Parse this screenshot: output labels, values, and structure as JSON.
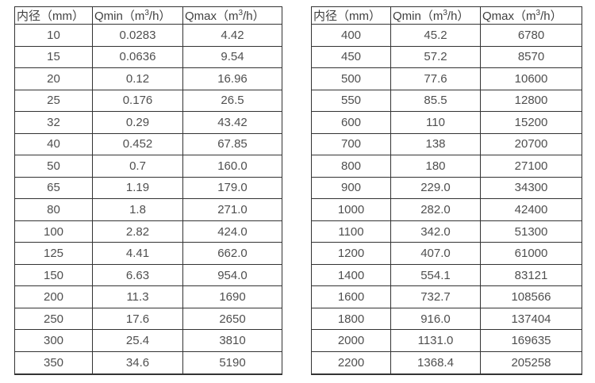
{
  "colors": {
    "background": "#ffffff",
    "border": "#333333",
    "header_text": "#404040",
    "cell_text": "#4f4f4f"
  },
  "tables": [
    {
      "name": "flow-table-small-diameters",
      "headers": [
        {
          "text": "内径（mm）"
        },
        {
          "pre": "Qmin（m",
          "sup": "3",
          "post": "/h）"
        },
        {
          "pre": "Qmax（m",
          "sup": "3",
          "post": "/h）"
        }
      ],
      "rows": [
        [
          "10",
          "0.0283",
          "4.42"
        ],
        [
          "15",
          "0.0636",
          "9.54"
        ],
        [
          "20",
          "0.12",
          "16.96"
        ],
        [
          "25",
          "0.176",
          "26.5"
        ],
        [
          "32",
          "0.29",
          "43.42"
        ],
        [
          "40",
          "0.452",
          "67.85"
        ],
        [
          "50",
          "0.7",
          "160.0"
        ],
        [
          "65",
          "1.19",
          "179.0"
        ],
        [
          "80",
          "1.8",
          "271.0"
        ],
        [
          "100",
          "2.82",
          "424.0"
        ],
        [
          "125",
          "4.41",
          "662.0"
        ],
        [
          "150",
          "6.63",
          "954.0"
        ],
        [
          "200",
          "11.3",
          "1690"
        ],
        [
          "250",
          "17.6",
          "2650"
        ],
        [
          "300",
          "25.4",
          "3810"
        ],
        [
          "350",
          "34.6",
          "5190"
        ]
      ]
    },
    {
      "name": "flow-table-large-diameters",
      "headers": [
        {
          "text": "内径（mm）"
        },
        {
          "pre": "Qmin（m",
          "sup": "3",
          "post": "/h）"
        },
        {
          "pre": "Qmax（m",
          "sup": "3",
          "post": "/h）"
        }
      ],
      "rows": [
        [
          "400",
          "45.2",
          "6780"
        ],
        [
          "450",
          "57.2",
          "8570"
        ],
        [
          "500",
          "77.6",
          "10600"
        ],
        [
          "550",
          "85.5",
          "12800"
        ],
        [
          "600",
          "110",
          "15200"
        ],
        [
          "700",
          "138",
          "20700"
        ],
        [
          "800",
          "180",
          "27100"
        ],
        [
          "900",
          "229.0",
          "34300"
        ],
        [
          "1000",
          "282.0",
          "42400"
        ],
        [
          "1100",
          "342.0",
          "51300"
        ],
        [
          "1200",
          "407.0",
          "61000"
        ],
        [
          "1400",
          "554.1",
          "83121"
        ],
        [
          "1600",
          "732.7",
          "108566"
        ],
        [
          "1800",
          "916.0",
          "137404"
        ],
        [
          "2000",
          "1131.0",
          "169635"
        ],
        [
          "2200",
          "1368.4",
          "205258"
        ]
      ]
    }
  ]
}
